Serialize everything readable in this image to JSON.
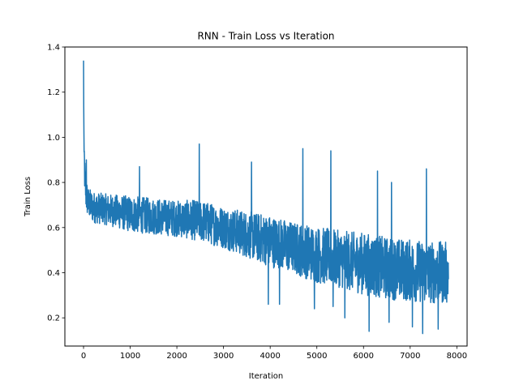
{
  "chart_data": {
    "type": "line",
    "title": "RNN - Train Loss vs Iteration",
    "xlabel": "Iteration",
    "ylabel": "Train Loss",
    "xlim": [
      -400,
      8220
    ],
    "ylim": [
      0.075,
      1.4
    ],
    "xticks": [
      0,
      1000,
      2000,
      3000,
      4000,
      5000,
      6000,
      7000,
      8000
    ],
    "yticks": [
      0.2,
      0.4,
      0.6,
      0.8,
      1.0,
      1.2,
      1.4
    ],
    "xtick_labels": [
      "0",
      "1000",
      "2000",
      "3000",
      "4000",
      "5000",
      "6000",
      "7000",
      "8000"
    ],
    "ytick_labels": [
      "0.2",
      "0.4",
      "0.6",
      "0.8",
      "1.0",
      "1.2",
      "1.4"
    ],
    "grid": false,
    "legend": "none",
    "series": [
      {
        "color": "#1f77b4",
        "trend_x": [
          0,
          10,
          30,
          60,
          100,
          200,
          500,
          1000,
          1500,
          2000,
          2500,
          3000,
          3500,
          4000,
          4500,
          5000,
          5500,
          6000,
          6500,
          7000,
          7500,
          7820
        ],
        "trend_y": [
          1.34,
          0.95,
          0.8,
          0.74,
          0.71,
          0.69,
          0.68,
          0.66,
          0.65,
          0.64,
          0.63,
          0.6,
          0.57,
          0.54,
          0.51,
          0.48,
          0.46,
          0.44,
          0.42,
          0.41,
          0.4,
          0.4
        ],
        "band_half_width": [
          0.05,
          0.08,
          0.08,
          0.07,
          0.06,
          0.06,
          0.06,
          0.07,
          0.07,
          0.07,
          0.08,
          0.08,
          0.09,
          0.1,
          0.1,
          0.11,
          0.11,
          0.12,
          0.12,
          0.12,
          0.12,
          0.12
        ],
        "spikes": [
          {
            "x": 0,
            "y": 1.34
          },
          {
            "x": 5,
            "y": 1.14
          },
          {
            "x": 60,
            "y": 0.9
          },
          {
            "x": 1200,
            "y": 0.87
          },
          {
            "x": 2480,
            "y": 0.97
          },
          {
            "x": 3600,
            "y": 0.89
          },
          {
            "x": 4700,
            "y": 0.95
          },
          {
            "x": 5300,
            "y": 0.94
          },
          {
            "x": 6300,
            "y": 0.85
          },
          {
            "x": 6600,
            "y": 0.8
          },
          {
            "x": 7350,
            "y": 0.86
          },
          {
            "x": 3960,
            "y": 0.26
          },
          {
            "x": 4200,
            "y": 0.26
          },
          {
            "x": 4950,
            "y": 0.24
          },
          {
            "x": 5350,
            "y": 0.25
          },
          {
            "x": 5600,
            "y": 0.2
          },
          {
            "x": 6120,
            "y": 0.14
          },
          {
            "x": 6550,
            "y": 0.18
          },
          {
            "x": 7050,
            "y": 0.16
          },
          {
            "x": 7270,
            "y": 0.13
          },
          {
            "x": 7600,
            "y": 0.15
          }
        ],
        "n_points": 7820
      }
    ]
  }
}
